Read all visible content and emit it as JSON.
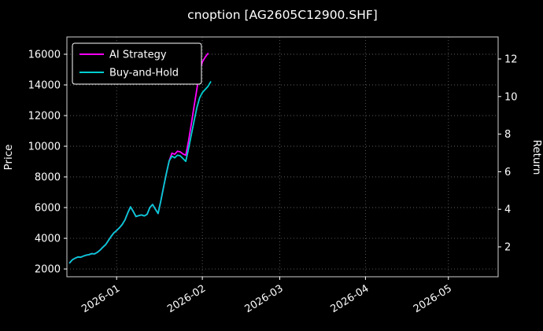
{
  "figure": {
    "background": "#000000",
    "foreground": "#ffffff",
    "grid_color": "#5f5f5f",
    "spine_color": "#cfcfcf"
  },
  "chart_data": {
    "type": "line",
    "title": "cnoption [AG2605C12900.SHF]",
    "xlabel": "",
    "ylabel_left": "Price",
    "ylabel_right": "Return",
    "grid": true,
    "legend_position": "upper-left",
    "x_ticks": [
      "2026-01-01",
      "2026-02-01",
      "2026-03-01",
      "2026-04-01",
      "2026-05-01"
    ],
    "x_tick_labels": [
      "2026-01",
      "2026-02",
      "2026-03",
      "2026-04",
      "2026-05"
    ],
    "xlim": [
      "2025-12-14",
      "2026-05-19"
    ],
    "y_left_ticks": [
      2000,
      4000,
      6000,
      8000,
      10000,
      12000,
      14000,
      16000
    ],
    "y_right_ticks": [
      2,
      4,
      6,
      8,
      10,
      12
    ],
    "price_ylim": [
      1490,
      17130
    ],
    "return_ylim": [
      0.41,
      13.17
    ],
    "return_price_relation": "return ~= (price - 985) / 1226",
    "series": [
      {
        "name": "AI Strategy",
        "color": "#ff00ff",
        "axis": "left",
        "dates": [
          "2025-12-15",
          "2025-12-16",
          "2025-12-17",
          "2025-12-18",
          "2025-12-19",
          "2025-12-20",
          "2025-12-21",
          "2025-12-22",
          "2025-12-23",
          "2025-12-24",
          "2025-12-25",
          "2025-12-26",
          "2025-12-27",
          "2025-12-28",
          "2025-12-29",
          "2025-12-30",
          "2025-12-31",
          "2026-01-01",
          "2026-01-02",
          "2026-01-03",
          "2026-01-04",
          "2026-01-05",
          "2026-01-06",
          "2026-01-07",
          "2026-01-08",
          "2026-01-09",
          "2026-01-10",
          "2026-01-11",
          "2026-01-12",
          "2026-01-13",
          "2026-01-14",
          "2026-01-15",
          "2026-01-16",
          "2026-01-17",
          "2026-01-18",
          "2026-01-19",
          "2026-01-20",
          "2026-01-21",
          "2026-01-22",
          "2026-01-23",
          "2026-01-24",
          "2026-01-25",
          "2026-01-26",
          "2026-01-27",
          "2026-01-28",
          "2026-01-29",
          "2026-01-30",
          "2026-01-31",
          "2026-02-01",
          "2026-02-02",
          "2026-02-03"
        ],
        "values": [
          2400,
          2600,
          2700,
          2780,
          2760,
          2840,
          2900,
          2930,
          3000,
          2980,
          3080,
          3230,
          3420,
          3580,
          3850,
          4120,
          4350,
          4500,
          4680,
          4900,
          5200,
          5650,
          6050,
          5750,
          5420,
          5480,
          5520,
          5460,
          5560,
          6000,
          6200,
          5900,
          5620,
          6450,
          7350,
          8250,
          9050,
          9550,
          9480,
          9680,
          9640,
          9500,
          9420,
          10350,
          11450,
          12600,
          13700,
          14800,
          15500,
          15800,
          16050
        ]
      },
      {
        "name": "Buy-and-Hold",
        "color": "#00ced1",
        "axis": "left",
        "dates": [
          "2025-12-15",
          "2025-12-16",
          "2025-12-17",
          "2025-12-18",
          "2025-12-19",
          "2025-12-20",
          "2025-12-21",
          "2025-12-22",
          "2025-12-23",
          "2025-12-24",
          "2025-12-25",
          "2025-12-26",
          "2025-12-27",
          "2025-12-28",
          "2025-12-29",
          "2025-12-30",
          "2025-12-31",
          "2026-01-01",
          "2026-01-02",
          "2026-01-03",
          "2026-01-04",
          "2026-01-05",
          "2026-01-06",
          "2026-01-07",
          "2026-01-08",
          "2026-01-09",
          "2026-01-10",
          "2026-01-11",
          "2026-01-12",
          "2026-01-13",
          "2026-01-14",
          "2026-01-15",
          "2026-01-16",
          "2026-01-17",
          "2026-01-18",
          "2026-01-19",
          "2026-01-20",
          "2026-01-21",
          "2026-01-22",
          "2026-01-23",
          "2026-01-24",
          "2026-01-25",
          "2026-01-26",
          "2026-01-27",
          "2026-01-28",
          "2026-01-29",
          "2026-01-30",
          "2026-01-31",
          "2026-02-01",
          "2026-02-02",
          "2026-02-03",
          "2026-02-04"
        ],
        "values": [
          2400,
          2600,
          2700,
          2780,
          2760,
          2840,
          2900,
          2930,
          3000,
          2980,
          3080,
          3230,
          3420,
          3580,
          3850,
          4120,
          4350,
          4500,
          4680,
          4900,
          5200,
          5650,
          6050,
          5750,
          5420,
          5480,
          5520,
          5460,
          5560,
          6000,
          6200,
          5900,
          5620,
          6450,
          7350,
          8250,
          9050,
          9350,
          9250,
          9420,
          9380,
          9200,
          9020,
          9850,
          10750,
          11650,
          12500,
          13150,
          13500,
          13700,
          13900,
          14200
        ]
      }
    ]
  }
}
